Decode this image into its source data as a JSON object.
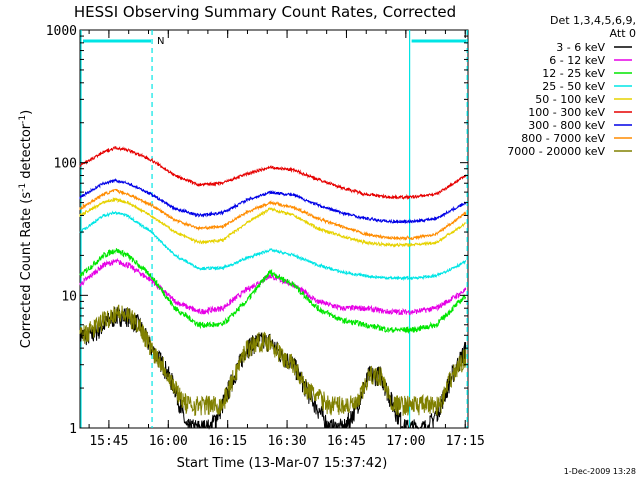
{
  "chart_data": {
    "type": "line",
    "title": "HESSI Observing Summary Count Rates, Corrected",
    "ylabel_prefix": "Corrected Count Rate (s",
    "ylabel_sup1": "-1",
    "ylabel_mid": " detector",
    "ylabel_sup2": "-1",
    "ylabel_suffix": ")",
    "xlabel": "Start Time (13-Mar-07 15:37:42)",
    "footer": "1-Dec-2009 13:28",
    "yscale": "log",
    "ylim": [
      1,
      1000
    ],
    "ytick_values": [
      1,
      10,
      100,
      1000
    ],
    "ytick_labels": [
      "1",
      "10",
      "100",
      "1000"
    ],
    "xlim_minutes": [
      0,
      98
    ],
    "xtick_minutes": [
      7.3,
      22.3,
      37.3,
      52.3,
      67.3,
      82.3,
      97.3
    ],
    "xtick_labels": [
      "15:45",
      "16:00",
      "16:15",
      "16:30",
      "16:45",
      "17:00",
      "17:15"
    ],
    "legend": {
      "header_line1": "Det 1,3,4,5,6,9,",
      "header_line2": "Att 0",
      "placement": "right"
    },
    "flags": {
      "marker_label": "N",
      "dashed_minutes": [
        18.2,
        97.8
      ],
      "solid_minutes": [
        0,
        83.0
      ],
      "bars": [
        [
          0,
          18.2
        ],
        [
          83.0,
          97.8
        ]
      ],
      "bar_color": "#00e5e5"
    },
    "series": [
      {
        "name": "3 - 6 keV",
        "color": "#000000",
        "x": [
          0,
          3,
          6,
          9,
          12,
          15,
          18,
          21,
          24,
          27,
          33,
          36,
          39,
          42,
          45,
          48,
          51,
          54,
          57,
          63,
          67,
          70,
          73,
          76,
          79,
          82,
          85,
          88,
          91,
          94,
          97.5
        ],
        "y": [
          5,
          5,
          6,
          7,
          7,
          6,
          4,
          3,
          2,
          1,
          1,
          1.5,
          2.5,
          4,
          4.5,
          4.5,
          3.5,
          3,
          2,
          1,
          1,
          1.5,
          2.5,
          2.5,
          1.5,
          1,
          1,
          1,
          1.5,
          2.5,
          4
        ]
      },
      {
        "name": "6 - 12 keV",
        "color": "#e600e6",
        "x": [
          0,
          6,
          9,
          12,
          18,
          24,
          30,
          36,
          42,
          48,
          54,
          60,
          66,
          72,
          78,
          84,
          90,
          97.5
        ],
        "y": [
          12,
          17,
          18,
          17,
          13,
          9,
          7.5,
          8,
          11,
          14,
          12,
          9,
          8,
          8,
          7.5,
          7.5,
          8,
          11
        ]
      },
      {
        "name": "12 - 25 keV",
        "color": "#00e600",
        "x": [
          0,
          6,
          9,
          12,
          18,
          24,
          30,
          36,
          42,
          48,
          54,
          60,
          66,
          72,
          78,
          84,
          90,
          97.5
        ],
        "y": [
          14,
          20,
          22,
          20,
          14,
          8,
          6,
          6,
          9,
          15,
          12,
          8,
          6.5,
          6,
          5.5,
          5.5,
          6,
          10
        ]
      },
      {
        "name": "25 - 50 keV",
        "color": "#00e5e5",
        "x": [
          0,
          6,
          9,
          12,
          18,
          24,
          30,
          36,
          42,
          48,
          54,
          60,
          66,
          72,
          78,
          84,
          90,
          97.5
        ],
        "y": [
          30,
          40,
          42,
          40,
          30,
          20,
          16,
          16,
          19,
          22,
          20,
          17,
          15,
          14,
          13.5,
          13.5,
          14,
          18
        ]
      },
      {
        "name": "50 - 100 keV",
        "color": "#e6d200",
        "x": [
          0,
          6,
          9,
          12,
          18,
          24,
          30,
          36,
          42,
          48,
          54,
          60,
          66,
          72,
          78,
          84,
          90,
          97.5
        ],
        "y": [
          40,
          50,
          53,
          50,
          40,
          30,
          25,
          26,
          35,
          45,
          40,
          32,
          28,
          25,
          24,
          24,
          25,
          35
        ]
      },
      {
        "name": "100 - 300 keV",
        "color": "#e60000",
        "x": [
          0,
          6,
          9,
          12,
          18,
          24,
          30,
          36,
          42,
          48,
          54,
          60,
          66,
          72,
          78,
          84,
          90,
          97.5
        ],
        "y": [
          95,
          120,
          130,
          125,
          105,
          80,
          68,
          70,
          82,
          92,
          88,
          75,
          65,
          58,
          55,
          55,
          58,
          80
        ]
      },
      {
        "name": "300 - 800 keV",
        "color": "#0000e6",
        "x": [
          0,
          6,
          9,
          12,
          18,
          24,
          30,
          36,
          42,
          48,
          54,
          60,
          66,
          72,
          78,
          84,
          90,
          97.5
        ],
        "y": [
          55,
          70,
          73,
          70,
          58,
          45,
          40,
          42,
          52,
          60,
          57,
          48,
          42,
          38,
          36,
          36,
          38,
          50
        ]
      },
      {
        "name": "800 - 7000 keV",
        "color": "#ff8c00",
        "x": [
          0,
          6,
          9,
          12,
          18,
          24,
          30,
          36,
          42,
          48,
          54,
          60,
          66,
          72,
          78,
          84,
          90,
          97.5
        ],
        "y": [
          45,
          58,
          62,
          58,
          48,
          37,
          32,
          33,
          42,
          50,
          46,
          38,
          33,
          29,
          27,
          27,
          29,
          42
        ]
      },
      {
        "name": "7000 - 20000 keV",
        "color": "#808000",
        "x": [
          0,
          3,
          6,
          9,
          12,
          15,
          18,
          21,
          24,
          27,
          33,
          36,
          39,
          42,
          45,
          48,
          51,
          54,
          57,
          63,
          67,
          70,
          73,
          76,
          79,
          82,
          85,
          88,
          91,
          94,
          97.5
        ],
        "y": [
          5,
          5.5,
          6.5,
          7.5,
          7,
          6,
          4,
          3,
          2,
          1.5,
          1.5,
          1.5,
          2.5,
          4,
          4.5,
          4.5,
          3.5,
          3,
          2,
          1.5,
          1.5,
          1.5,
          2.5,
          2.5,
          1.5,
          1.5,
          1.5,
          1.5,
          1.5,
          2.5,
          3.5
        ]
      }
    ]
  }
}
